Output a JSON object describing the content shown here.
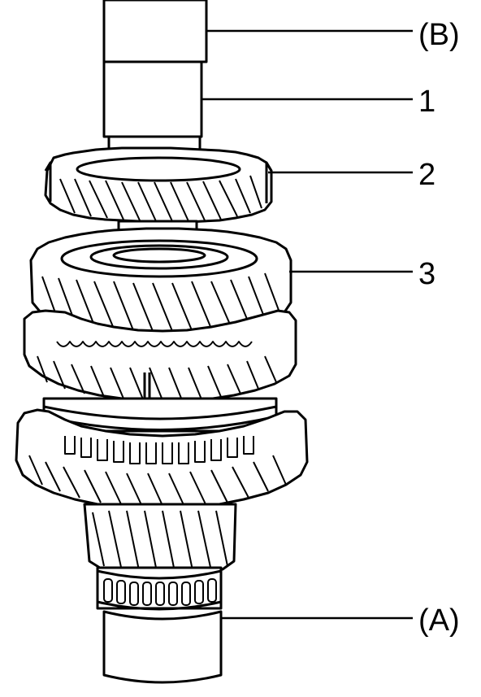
{
  "callouts": [
    {
      "id": "B",
      "label": "(B)"
    },
    {
      "id": "1",
      "label": "1"
    },
    {
      "id": "2",
      "label": "2"
    },
    {
      "id": "3",
      "label": "3"
    },
    {
      "id": "A",
      "label": "(A)"
    }
  ]
}
